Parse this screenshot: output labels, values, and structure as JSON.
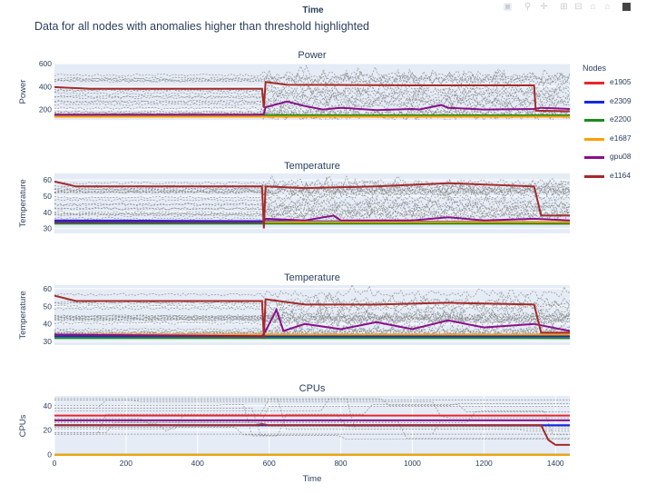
{
  "modebar": {
    "icons": [
      "camera-icon",
      "zoom-icon",
      "pan-icon",
      "zoom-in-icon",
      "zoom-out-icon",
      "autoscale-icon",
      "reset-icon",
      "plotly-logo"
    ]
  },
  "top_x_title": "Time",
  "main_title": "Data for all nodes with anomalies higher than threshold highlighted",
  "legend": {
    "title": "Nodes",
    "items": [
      {
        "name": "e1905",
        "color": "#e8252a"
      },
      {
        "name": "e2309",
        "color": "#1428e0"
      },
      {
        "name": "e2200",
        "color": "#1b8c1b"
      },
      {
        "name": "e1687",
        "color": "#ff9f00"
      },
      {
        "name": "gpu08",
        "color": "#8b0f8b"
      },
      {
        "name": "e1164",
        "color": "#a52a2a"
      }
    ]
  },
  "chart_data": [
    {
      "type": "line",
      "title": "Power",
      "ylabel": "Power",
      "xlim": [
        0,
        1440
      ],
      "ylim": [
        110,
        600
      ],
      "yticks": [
        200,
        400,
        600
      ],
      "background_gray": {
        "min": 140,
        "max": 520
      },
      "series": [
        {
          "name": "e1905",
          "points": [
            [
              0,
              142
            ],
            [
              1440,
              142
            ]
          ]
        },
        {
          "name": "e2309",
          "points": [
            [
              0,
              148
            ],
            [
              1440,
              148
            ]
          ]
        },
        {
          "name": "e2200",
          "points": [
            [
              0,
              152
            ],
            [
              1440,
              150
            ]
          ]
        },
        {
          "name": "e1687",
          "points": [
            [
              0,
              138
            ],
            [
              1440,
              138
            ]
          ]
        },
        {
          "name": "gpu08",
          "points": [
            [
              0,
              155
            ],
            [
              575,
              155
            ],
            [
              585,
              160
            ],
            [
              590,
              220
            ],
            [
              650,
              270
            ],
            [
              700,
              230
            ],
            [
              750,
              200
            ],
            [
              800,
              215
            ],
            [
              900,
              195
            ],
            [
              1000,
              205
            ],
            [
              1020,
              200
            ],
            [
              1080,
              240
            ],
            [
              1100,
              215
            ],
            [
              1200,
              200
            ],
            [
              1340,
              205
            ],
            [
              1360,
              215
            ],
            [
              1440,
              205
            ]
          ]
        },
        {
          "name": "e1164",
          "points": [
            [
              0,
              395
            ],
            [
              100,
              380
            ],
            [
              300,
              380
            ],
            [
              580,
              380
            ],
            [
              585,
              215
            ],
            [
              590,
              440
            ],
            [
              650,
              415
            ],
            [
              1000,
              410
            ],
            [
              1340,
              410
            ],
            [
              1345,
              190
            ],
            [
              1440,
              185
            ]
          ]
        }
      ]
    },
    {
      "type": "line",
      "title": "Temperature",
      "ylabel": "Temperature",
      "xlim": [
        0,
        1440
      ],
      "ylim": [
        27,
        64
      ],
      "yticks": [
        30,
        40,
        50,
        60
      ],
      "background_gray": {
        "min": 36,
        "max": 60
      },
      "series": [
        {
          "name": "e1905",
          "points": [
            [
              0,
              34
            ],
            [
              1440,
              33
            ]
          ]
        },
        {
          "name": "e2309",
          "points": [
            [
              0,
              35
            ],
            [
              1440,
              34
            ]
          ]
        },
        {
          "name": "e2200",
          "points": [
            [
              0,
              33
            ],
            [
              1440,
              33
            ]
          ]
        },
        {
          "name": "e1687",
          "points": [
            [
              0,
              34
            ],
            [
              1440,
              34
            ]
          ]
        },
        {
          "name": "gpu08",
          "points": [
            [
              0,
              34
            ],
            [
              580,
              34
            ],
            [
              590,
              36
            ],
            [
              700,
              35
            ],
            [
              780,
              38
            ],
            [
              800,
              35
            ],
            [
              1000,
              35
            ],
            [
              1100,
              37
            ],
            [
              1200,
              35
            ],
            [
              1340,
              36
            ],
            [
              1440,
              35
            ]
          ]
        },
        {
          "name": "e1164",
          "points": [
            [
              0,
              59
            ],
            [
              60,
              56
            ],
            [
              580,
              56
            ],
            [
              585,
              30
            ],
            [
              590,
              56
            ],
            [
              700,
              55
            ],
            [
              900,
              56
            ],
            [
              1000,
              57
            ],
            [
              1100,
              58
            ],
            [
              1340,
              56
            ],
            [
              1360,
              38
            ],
            [
              1440,
              38
            ]
          ]
        }
      ]
    },
    {
      "type": "line",
      "title": "Temperature",
      "ylabel": "Temperature",
      "xlim": [
        0,
        1440
      ],
      "ylim": [
        28,
        62
      ],
      "yticks": [
        30,
        40,
        50,
        60
      ],
      "background_gray": {
        "min": 34,
        "max": 58
      },
      "series": [
        {
          "name": "e1905",
          "points": [
            [
              0,
              33
            ],
            [
              1440,
              32
            ]
          ]
        },
        {
          "name": "e2309",
          "points": [
            [
              0,
              33
            ],
            [
              1440,
              33
            ]
          ]
        },
        {
          "name": "e2200",
          "points": [
            [
              0,
              32
            ],
            [
              1440,
              32
            ]
          ]
        },
        {
          "name": "e1687",
          "points": [
            [
              0,
              34
            ],
            [
              1440,
              34
            ]
          ]
        },
        {
          "name": "gpu08",
          "points": [
            [
              0,
              34
            ],
            [
              580,
              33
            ],
            [
              590,
              36
            ],
            [
              620,
              48
            ],
            [
              640,
              36
            ],
            [
              700,
              40
            ],
            [
              800,
              37
            ],
            [
              900,
              41
            ],
            [
              1000,
              37
            ],
            [
              1100,
              42
            ],
            [
              1200,
              38
            ],
            [
              1340,
              40
            ],
            [
              1440,
              36
            ]
          ]
        },
        {
          "name": "e1164",
          "points": [
            [
              0,
              56
            ],
            [
              60,
              53
            ],
            [
              580,
              53
            ],
            [
              585,
              32
            ],
            [
              590,
              54
            ],
            [
              700,
              51
            ],
            [
              900,
              51
            ],
            [
              1100,
              52
            ],
            [
              1340,
              51
            ],
            [
              1360,
              35
            ],
            [
              1440,
              35
            ]
          ]
        }
      ]
    },
    {
      "type": "line",
      "title": "CPUs",
      "ylabel": "CPUs",
      "xlabel": "Time",
      "xlim": [
        0,
        1440
      ],
      "ylim": [
        -1,
        48
      ],
      "yticks": [
        0,
        20,
        40
      ],
      "xticks": [
        0,
        200,
        400,
        600,
        800,
        1000,
        1200,
        1400
      ],
      "background_gray": {
        "min": 12,
        "max": 46
      },
      "series": [
        {
          "name": "e1905",
          "points": [
            [
              0,
              32
            ],
            [
              1440,
              32
            ]
          ]
        },
        {
          "name": "e2309",
          "points": [
            [
              0,
              24
            ],
            [
              1440,
              24
            ]
          ]
        },
        {
          "name": "e2200",
          "points": [
            [
              0,
              0
            ],
            [
              1440,
              0
            ]
          ]
        },
        {
          "name": "e1687",
          "points": [
            [
              0,
              0
            ],
            [
              1440,
              0
            ]
          ]
        },
        {
          "name": "gpu08",
          "points": [
            [
              0,
              28
            ],
            [
              1440,
              28
            ]
          ]
        },
        {
          "name": "e1164",
          "points": [
            [
              0,
              24
            ],
            [
              560,
              24
            ],
            [
              580,
              25
            ],
            [
              600,
              24
            ],
            [
              1360,
              24
            ],
            [
              1380,
              12
            ],
            [
              1400,
              8
            ],
            [
              1440,
              8
            ]
          ]
        }
      ]
    }
  ]
}
